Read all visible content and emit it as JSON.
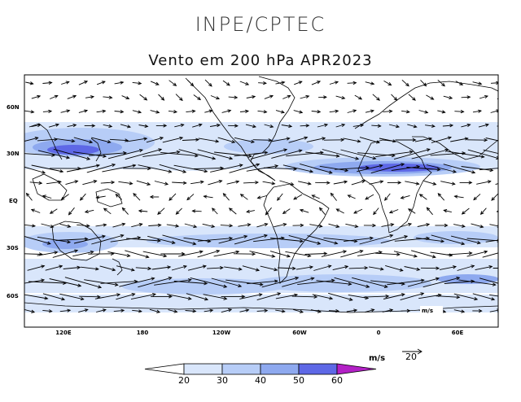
{
  "header": "INPE/CPTEC",
  "title": "Vento em 200 hPa APR2023",
  "lat_labels": [
    "60N",
    "30N",
    "EQ",
    "30S",
    "60S"
  ],
  "lon_labels": [
    "120E",
    "180",
    "120W",
    "60W",
    "0",
    "60E"
  ],
  "colorbar": {
    "values": [
      "20",
      "30",
      "40",
      "50",
      "60"
    ],
    "colors": [
      "#ffffff",
      "#d9e6fb",
      "#b7cdf7",
      "#8ea9ef",
      "#5e68e6",
      "#b321c6"
    ]
  },
  "units": {
    "legend": "m/s",
    "reference_vector": "20",
    "map_label": "m/s"
  }
}
